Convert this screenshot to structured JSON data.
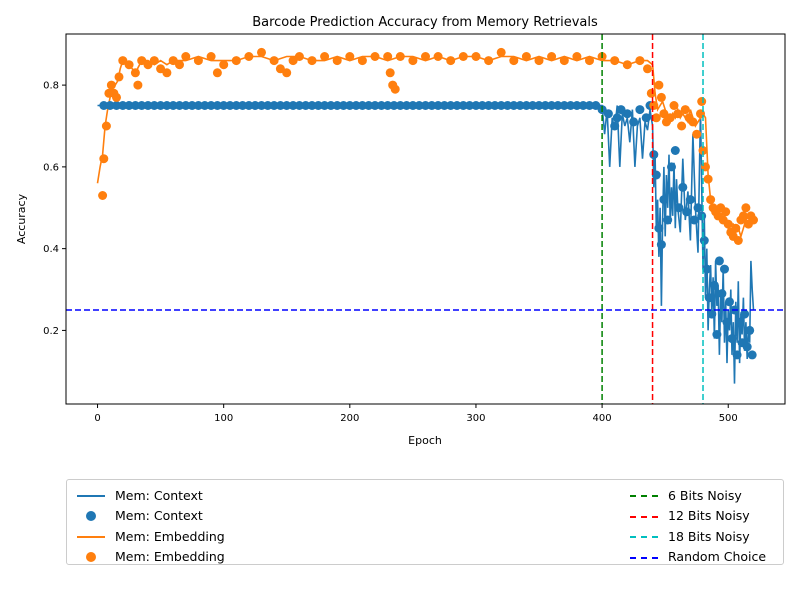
{
  "chart_data": {
    "type": "line",
    "title": "Barcode Prediction Accuracy from Memory Retrievals",
    "xlabel": "Epoch",
    "ylabel": "Accuracy",
    "xlim": [
      -25,
      545
    ],
    "ylim": [
      0.02,
      0.925
    ],
    "xticks": [
      0,
      100,
      200,
      300,
      400,
      500
    ],
    "yticks": [
      0.2,
      0.4,
      0.6,
      0.8
    ],
    "grid": false,
    "legend_position": "below",
    "colors": {
      "context": "#1f77b4",
      "embedding": "#ff7f0e",
      "bits6": "#008000",
      "bits12": "#ff0000",
      "bits18": "#00bfbf",
      "random": "#0000ff"
    },
    "vlines": [
      {
        "name": "6 Bits Noisy",
        "x": 400,
        "color": "#008000"
      },
      {
        "name": "12 Bits Noisy",
        "x": 440,
        "color": "#ff0000"
      },
      {
        "name": "18 Bits Noisy",
        "x": 480,
        "color": "#00bfbf"
      }
    ],
    "hlines": [
      {
        "name": "Random Choice",
        "y": 0.25,
        "color": "#0000ff"
      }
    ],
    "series": [
      {
        "name": "Mem: Context",
        "x": [
          0,
          400,
          402,
          404,
          406,
          408,
          410,
          412,
          414,
          416,
          418,
          420,
          422,
          424,
          426,
          428,
          430,
          432,
          434,
          436,
          438,
          440,
          441,
          442,
          443,
          444,
          445,
          446,
          447,
          448,
          449,
          450,
          451,
          452,
          453,
          454,
          455,
          456,
          457,
          458,
          459,
          460,
          462,
          464,
          466,
          468,
          470,
          472,
          474,
          476,
          478,
          480,
          481,
          482,
          483,
          484,
          485,
          486,
          487,
          488,
          489,
          490,
          491,
          492,
          493,
          494,
          495,
          496,
          497,
          498,
          499,
          500,
          501,
          502,
          503,
          504,
          505,
          506,
          507,
          508,
          509,
          510,
          511,
          512,
          513,
          514,
          515,
          516,
          517,
          518,
          519,
          520
        ],
        "values": [
          0.75,
          0.75,
          0.68,
          0.74,
          0.6,
          0.72,
          0.69,
          0.75,
          0.6,
          0.73,
          0.7,
          0.72,
          0.66,
          0.74,
          0.6,
          0.7,
          0.72,
          0.62,
          0.71,
          0.69,
          0.74,
          0.7,
          0.55,
          0.63,
          0.45,
          0.52,
          0.38,
          0.5,
          0.26,
          0.47,
          0.6,
          0.43,
          0.58,
          0.5,
          0.63,
          0.46,
          0.55,
          0.48,
          0.61,
          0.45,
          0.57,
          0.5,
          0.44,
          0.62,
          0.47,
          0.54,
          0.42,
          0.68,
          0.5,
          0.39,
          0.74,
          0.35,
          0.48,
          0.28,
          0.4,
          0.2,
          0.3,
          0.36,
          0.24,
          0.33,
          0.18,
          0.37,
          0.26,
          0.31,
          0.14,
          0.29,
          0.22,
          0.35,
          0.17,
          0.27,
          0.12,
          0.25,
          0.2,
          0.3,
          0.14,
          0.22,
          0.07,
          0.27,
          0.17,
          0.32,
          0.12,
          0.24,
          0.19,
          0.28,
          0.15,
          0.22,
          0.13,
          0.2,
          0.17,
          0.37,
          0.3,
          0.25
        ]
      },
      {
        "name": "Mem: Embedding",
        "x": [
          0,
          2,
          4,
          6,
          8,
          10,
          12,
          14,
          16,
          18,
          20,
          25,
          30,
          35,
          40,
          45,
          50,
          55,
          60,
          70,
          80,
          90,
          100,
          110,
          120,
          130,
          140,
          150,
          160,
          170,
          180,
          190,
          200,
          210,
          220,
          230,
          240,
          250,
          260,
          270,
          280,
          290,
          300,
          310,
          320,
          330,
          340,
          350,
          360,
          370,
          380,
          390,
          400,
          410,
          420,
          430,
          436,
          440,
          442,
          444,
          446,
          448,
          450,
          452,
          454,
          456,
          458,
          460,
          462,
          464,
          466,
          468,
          470,
          472,
          474,
          476,
          478,
          480,
          482,
          484,
          486,
          488,
          490,
          492,
          494,
          496,
          498,
          500,
          502,
          504,
          506,
          508,
          510,
          512,
          514,
          516,
          518,
          520
        ],
        "values": [
          0.56,
          0.6,
          0.63,
          0.7,
          0.74,
          0.77,
          0.8,
          0.8,
          0.81,
          0.84,
          0.86,
          0.85,
          0.83,
          0.86,
          0.86,
          0.85,
          0.86,
          0.85,
          0.86,
          0.86,
          0.87,
          0.86,
          0.86,
          0.86,
          0.87,
          0.87,
          0.86,
          0.87,
          0.87,
          0.86,
          0.86,
          0.87,
          0.86,
          0.87,
          0.87,
          0.86,
          0.87,
          0.87,
          0.86,
          0.87,
          0.86,
          0.87,
          0.87,
          0.86,
          0.87,
          0.87,
          0.86,
          0.87,
          0.86,
          0.87,
          0.86,
          0.87,
          0.86,
          0.86,
          0.85,
          0.86,
          0.86,
          0.85,
          0.78,
          0.74,
          0.75,
          0.76,
          0.74,
          0.72,
          0.71,
          0.73,
          0.72,
          0.74,
          0.72,
          0.73,
          0.72,
          0.71,
          0.74,
          0.72,
          0.7,
          0.71,
          0.72,
          0.73,
          0.72,
          0.58,
          0.52,
          0.5,
          0.49,
          0.48,
          0.47,
          0.49,
          0.47,
          0.45,
          0.46,
          0.46,
          0.44,
          0.45,
          0.43,
          0.45,
          0.47,
          0.48,
          0.48,
          0.47
        ]
      }
    ],
    "scatter_series": [
      {
        "name": "Mem: Context",
        "x": [
          5,
          10,
          15,
          20,
          25,
          30,
          35,
          40,
          45,
          50,
          55,
          60,
          65,
          70,
          75,
          80,
          85,
          90,
          95,
          100,
          105,
          110,
          115,
          120,
          125,
          130,
          135,
          140,
          145,
          150,
          155,
          160,
          165,
          170,
          175,
          180,
          185,
          190,
          195,
          200,
          205,
          210,
          215,
          220,
          225,
          230,
          235,
          240,
          245,
          250,
          255,
          260,
          265,
          270,
          275,
          280,
          285,
          290,
          295,
          300,
          305,
          310,
          315,
          320,
          325,
          330,
          335,
          340,
          345,
          350,
          355,
          360,
          365,
          370,
          375,
          380,
          385,
          390,
          395,
          400,
          405,
          410,
          412,
          415,
          420,
          425,
          430,
          435,
          438,
          441,
          443,
          445,
          447,
          449,
          452,
          455,
          458,
          461,
          464,
          467,
          470,
          473,
          476,
          479,
          481,
          483,
          485,
          487,
          489,
          491,
          493,
          495,
          497,
          499,
          501,
          503,
          505,
          507,
          509,
          511,
          513,
          515,
          517,
          519
        ],
        "values": [
          0.75,
          0.75,
          0.75,
          0.75,
          0.75,
          0.75,
          0.75,
          0.75,
          0.75,
          0.75,
          0.75,
          0.75,
          0.75,
          0.75,
          0.75,
          0.75,
          0.75,
          0.75,
          0.75,
          0.75,
          0.75,
          0.75,
          0.75,
          0.75,
          0.75,
          0.75,
          0.75,
          0.75,
          0.75,
          0.75,
          0.75,
          0.75,
          0.75,
          0.75,
          0.75,
          0.75,
          0.75,
          0.75,
          0.75,
          0.75,
          0.75,
          0.75,
          0.75,
          0.75,
          0.75,
          0.75,
          0.75,
          0.75,
          0.75,
          0.75,
          0.75,
          0.75,
          0.75,
          0.75,
          0.75,
          0.75,
          0.75,
          0.75,
          0.75,
          0.75,
          0.75,
          0.75,
          0.75,
          0.75,
          0.75,
          0.75,
          0.75,
          0.75,
          0.75,
          0.75,
          0.75,
          0.75,
          0.75,
          0.75,
          0.75,
          0.75,
          0.75,
          0.75,
          0.75,
          0.74,
          0.73,
          0.7,
          0.72,
          0.74,
          0.73,
          0.71,
          0.74,
          0.72,
          0.75,
          0.63,
          0.58,
          0.45,
          0.41,
          0.52,
          0.47,
          0.6,
          0.64,
          0.5,
          0.55,
          0.49,
          0.52,
          0.47,
          0.5,
          0.48,
          0.42,
          0.35,
          0.28,
          0.24,
          0.31,
          0.19,
          0.37,
          0.29,
          0.35,
          0.22,
          0.27,
          0.18,
          0.25,
          0.14,
          0.22,
          0.17,
          0.24,
          0.16,
          0.2,
          0.14
        ]
      },
      {
        "name": "Mem: Embedding",
        "x": [
          4,
          5,
          7,
          9,
          11,
          13,
          15,
          17,
          20,
          25,
          30,
          32,
          35,
          40,
          45,
          50,
          55,
          60,
          65,
          70,
          80,
          90,
          95,
          100,
          110,
          120,
          130,
          140,
          145,
          150,
          155,
          160,
          170,
          180,
          190,
          200,
          210,
          220,
          230,
          232,
          234,
          236,
          240,
          250,
          260,
          270,
          280,
          290,
          300,
          310,
          320,
          330,
          340,
          350,
          360,
          370,
          380,
          390,
          400,
          410,
          420,
          430,
          436,
          439,
          441,
          443,
          445,
          447,
          449,
          451,
          454,
          457,
          460,
          463,
          466,
          469,
          472,
          475,
          478,
          479,
          480,
          482,
          484,
          486,
          488,
          490,
          492,
          494,
          496,
          498,
          500,
          502,
          504,
          506,
          508,
          510,
          512,
          514,
          516,
          518,
          520
        ],
        "values": [
          0.53,
          0.62,
          0.7,
          0.78,
          0.8,
          0.78,
          0.77,
          0.82,
          0.86,
          0.85,
          0.83,
          0.8,
          0.86,
          0.85,
          0.86,
          0.84,
          0.83,
          0.86,
          0.85,
          0.87,
          0.86,
          0.87,
          0.83,
          0.85,
          0.86,
          0.87,
          0.88,
          0.86,
          0.84,
          0.83,
          0.86,
          0.87,
          0.86,
          0.87,
          0.86,
          0.87,
          0.86,
          0.87,
          0.87,
          0.83,
          0.8,
          0.79,
          0.87,
          0.86,
          0.87,
          0.87,
          0.86,
          0.87,
          0.87,
          0.86,
          0.88,
          0.86,
          0.87,
          0.86,
          0.87,
          0.86,
          0.87,
          0.86,
          0.87,
          0.86,
          0.85,
          0.86,
          0.84,
          0.78,
          0.75,
          0.72,
          0.8,
          0.77,
          0.73,
          0.71,
          0.72,
          0.75,
          0.73,
          0.7,
          0.74,
          0.72,
          0.71,
          0.68,
          0.73,
          0.76,
          0.64,
          0.6,
          0.57,
          0.52,
          0.5,
          0.49,
          0.48,
          0.5,
          0.47,
          0.49,
          0.46,
          0.44,
          0.43,
          0.45,
          0.42,
          0.47,
          0.48,
          0.5,
          0.46,
          0.48,
          0.47
        ]
      }
    ]
  },
  "legend": {
    "left": [
      {
        "label": "Mem: Context",
        "kind": "line",
        "color": "#1f77b4"
      },
      {
        "label": "Mem: Context",
        "kind": "dot",
        "color": "#1f77b4"
      },
      {
        "label": "Mem: Embedding",
        "kind": "line",
        "color": "#ff7f0e"
      },
      {
        "label": "Mem: Embedding",
        "kind": "dot",
        "color": "#ff7f0e"
      }
    ],
    "right": [
      {
        "label": "6 Bits Noisy",
        "kind": "dash",
        "color": "#008000"
      },
      {
        "label": "12 Bits Noisy",
        "kind": "dash",
        "color": "#ff0000"
      },
      {
        "label": "18 Bits Noisy",
        "kind": "dash",
        "color": "#00bfbf"
      },
      {
        "label": "Random Choice",
        "kind": "dash",
        "color": "#0000ff"
      }
    ]
  }
}
